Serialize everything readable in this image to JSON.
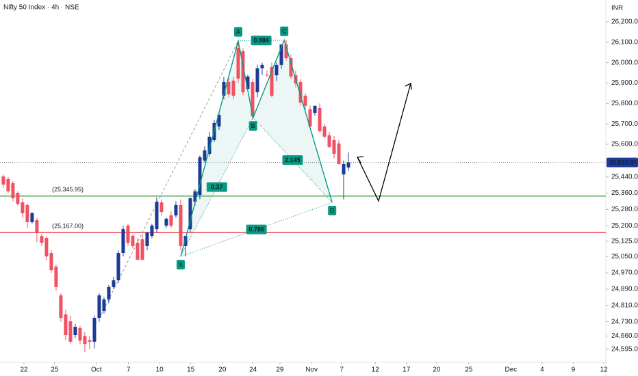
{
  "chart_data": {
    "type": "candlestick",
    "title": "Nifty 50 Index · 4h · NSE",
    "currency": "INR",
    "up_color": "#1c3b96",
    "down_color": "#f05163",
    "open": [
      25442,
      25429,
      25409,
      25362,
      25315,
      25302,
      25218,
      25228,
      25151,
      25141,
      25067,
      25000,
      24859,
      24766,
      24732,
      24665,
      24699,
      24660,
      24640,
      24632,
      24749,
      24782,
      24839,
      24900,
      24933,
      25067,
      25201,
      25151,
      25117,
      25134,
      25101,
      25151,
      25184,
      25315,
      25201,
      25251,
      25251,
      25302,
      25101,
      25184,
      25318,
      25352,
      25520,
      25553,
      25620,
      25687,
      25838,
      25905,
      25912,
      26072,
      26056,
      25871,
      25905,
      25855,
      25972,
      25940,
      25979,
      25938,
      25989,
      26089,
      26022,
      25938,
      25905,
      25838,
      25771,
      25754,
      25778,
      25687,
      25644,
      25620,
      25604,
      25452,
      25486
    ],
    "high": [
      25452,
      25440,
      25420,
      25370,
      25335,
      25310,
      25268,
      25240,
      25160,
      25150,
      25080,
      25010,
      24870,
      24790,
      24760,
      24720,
      24710,
      24680,
      24660,
      24760,
      24870,
      24850,
      24910,
      24950,
      25080,
      25200,
      25210,
      25160,
      25140,
      25160,
      25170,
      25210,
      25340,
      25330,
      25240,
      25270,
      25320,
      25330,
      25140,
      25340,
      25380,
      25545,
      25590,
      25660,
      25720,
      25760,
      25930,
      25925,
      25930,
      26107,
      26070,
      25940,
      25920,
      25990,
      26000,
      25960,
      26000,
      26000,
      26090,
      26110,
      26040,
      25960,
      25920,
      25850,
      25790,
      25790,
      25800,
      25700,
      25660,
      25640,
      25620,
      25520,
      25560
    ],
    "low": [
      25385,
      25360,
      25320,
      25300,
      25241,
      25190,
      25210,
      25120,
      25100,
      25030,
      24970,
      24880,
      24730,
      24640,
      24620,
      24650,
      24620,
      24581,
      24595,
      24600,
      24730,
      24770,
      24820,
      24890,
      24920,
      25050,
      25100,
      25090,
      25030,
      25030,
      25080,
      25140,
      25170,
      25250,
      25190,
      25190,
      25240,
      25080,
      25050,
      25170,
      25300,
      25330,
      25510,
      25540,
      25610,
      25670,
      25820,
      25830,
      25820,
      25900,
      25840,
      25860,
      25720,
      25830,
      25940,
      25930,
      25830,
      25910,
      25970,
      26010,
      25920,
      25880,
      25790,
      25770,
      25680,
      25740,
      25660,
      25630,
      25580,
      25530,
      25500,
      25330,
      25470
    ],
    "close": [
      25402,
      25369,
      25335,
      25308,
      25262,
      25218,
      25262,
      25168,
      25117,
      25050,
      24983,
      24900,
      24749,
      24665,
      24632,
      24705,
      24638,
      24621,
      24632,
      24749,
      24859,
      24839,
      24900,
      24933,
      25067,
      25184,
      25117,
      25101,
      25034,
      25034,
      25168,
      25201,
      25318,
      25268,
      25235,
      25201,
      25302,
      25101,
      25151,
      25335,
      25369,
      25536,
      25570,
      25637,
      25704,
      25744,
      25905,
      25845,
      25838,
      25922,
      25855,
      25932,
      25737,
      25972,
      25989,
      25938,
      25838,
      25989,
      26089,
      26022,
      25932,
      25898,
      25804,
      25788,
      25687,
      25788,
      25664,
      25637,
      25587,
      25553,
      25503,
      25503,
      25510.8
    ],
    "xlim": [
      -0.7,
      125.7
    ],
    "xticks": [
      {
        "value": 4.3,
        "label": "22"
      },
      {
        "value": 10.7,
        "label": "25"
      },
      {
        "value": 19.4,
        "label": "Oct"
      },
      {
        "value": 26.1,
        "label": "7"
      },
      {
        "value": 32.6,
        "label": "10"
      },
      {
        "value": 39.1,
        "label": "15"
      },
      {
        "value": 45.7,
        "label": "20"
      },
      {
        "value": 52.1,
        "label": "24"
      },
      {
        "value": 57.7,
        "label": "29"
      },
      {
        "value": 64.3,
        "label": "Nov"
      },
      {
        "value": 70.6,
        "label": "7"
      },
      {
        "value": 77.6,
        "label": "12"
      },
      {
        "value": 84.1,
        "label": "17"
      },
      {
        "value": 90.4,
        "label": "20"
      },
      {
        "value": 97.1,
        "label": "25"
      },
      {
        "value": 105.9,
        "label": "Dec"
      },
      {
        "value": 112.4,
        "label": "4"
      },
      {
        "value": 118.9,
        "label": "9"
      },
      {
        "value": 125.3,
        "label": "12"
      }
    ],
    "ylim": [
      24531,
      26307
    ],
    "yticks": [
      {
        "value": 26200,
        "label": "26,200.00"
      },
      {
        "value": 26100,
        "label": "26,100.00"
      },
      {
        "value": 26000,
        "label": "26,000.00"
      },
      {
        "value": 25900,
        "label": "25,900.00"
      },
      {
        "value": 25800,
        "label": "25,800.00"
      },
      {
        "value": 25700,
        "label": "25,700.00"
      },
      {
        "value": 25600,
        "label": "25,600.00"
      },
      {
        "value": 25440,
        "label": "25,440.00"
      },
      {
        "value": 25360,
        "label": "25,360.00"
      },
      {
        "value": 25280,
        "label": "25,280.00"
      },
      {
        "value": 25200,
        "label": "25,200.00"
      },
      {
        "value": 25125,
        "label": "25,125.00"
      },
      {
        "value": 25050,
        "label": "25,050.00"
      },
      {
        "value": 24970,
        "label": "24,970.00"
      },
      {
        "value": 24890,
        "label": "24,890.00"
      },
      {
        "value": 24810,
        "label": "24,810.00"
      },
      {
        "value": 24730,
        "label": "24,730.00"
      },
      {
        "value": 24660,
        "label": "24,660.00"
      },
      {
        "value": 24595,
        "label": "24,595.00"
      }
    ],
    "last_price": {
      "value": 25510.8,
      "label": "25,510.80"
    },
    "levels": [
      {
        "value": 25345.95,
        "label": "(25,345.95)",
        "color": "#43a047"
      },
      {
        "value": 25167,
        "label": "(25,167.00)",
        "color": "#f23645"
      }
    ],
    "pattern": {
      "color": "#089981",
      "points": [
        {
          "label": "X",
          "x": 37,
          "y": 25050
        },
        {
          "label": "A",
          "x": 49,
          "y": 26107
        },
        {
          "label": "B",
          "x": 52.1,
          "y": 25730
        },
        {
          "label": "C",
          "x": 58.6,
          "y": 26110
        },
        {
          "label": "D",
          "x": 68.6,
          "y": 25315
        }
      ],
      "ratios": [
        0.37,
        0.984,
        2.145,
        0.786
      ]
    }
  }
}
